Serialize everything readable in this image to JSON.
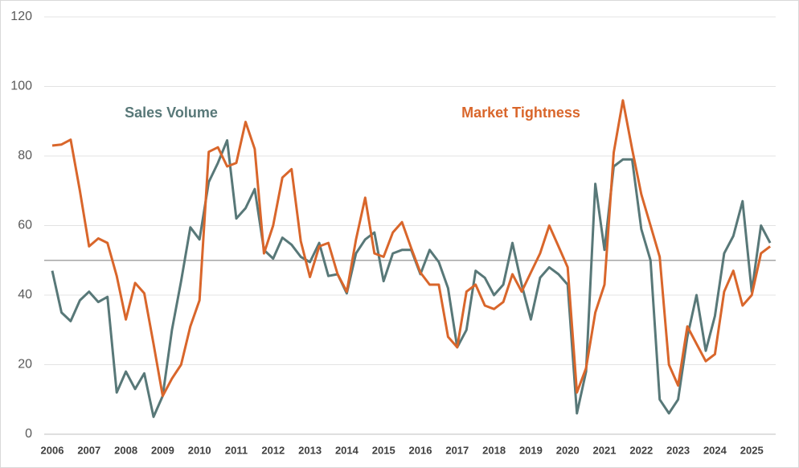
{
  "chart_data": {
    "type": "line",
    "annotations": [
      {
        "text": "Sales Volume",
        "color": "#587878"
      },
      {
        "text": "Market Tightness",
        "color": "#d9662b"
      }
    ],
    "x": [
      2006,
      2006.25,
      2006.5,
      2006.75,
      2007,
      2007.25,
      2007.5,
      2007.75,
      2008,
      2008.25,
      2008.5,
      2008.75,
      2009,
      2009.25,
      2009.5,
      2009.75,
      2010,
      2010.25,
      2010.5,
      2010.75,
      2011,
      2011.25,
      2011.5,
      2011.75,
      2012,
      2012.25,
      2012.5,
      2012.75,
      2013,
      2013.25,
      2013.5,
      2013.75,
      2014,
      2014.25,
      2014.5,
      2014.75,
      2015,
      2015.25,
      2015.5,
      2015.75,
      2016,
      2016.25,
      2016.5,
      2016.75,
      2017,
      2017.25,
      2017.5,
      2017.75,
      2018,
      2018.25,
      2018.5,
      2018.75,
      2019,
      2019.25,
      2019.5,
      2019.75,
      2020,
      2020.25,
      2020.5,
      2020.75,
      2021,
      2021.25,
      2021.5,
      2021.75,
      2022,
      2022.25,
      2022.5,
      2022.75,
      2023,
      2023.25,
      2023.5,
      2023.75,
      2024,
      2024.25,
      2024.5,
      2024.75,
      2025,
      2025.25,
      2025.5
    ],
    "series": [
      {
        "name": "Sales Volume",
        "color": "#587878",
        "values": [
          47,
          35,
          32.5,
          38.5,
          41,
          38,
          39.5,
          12,
          18,
          13,
          17.5,
          5,
          11,
          30,
          44,
          59.5,
          56,
          72.5,
          78,
          84.5,
          62,
          65,
          70.5,
          53,
          50.5,
          56.5,
          54.5,
          51,
          49.5,
          55,
          45.5,
          46,
          40.5,
          52,
          56,
          58,
          44,
          52,
          53,
          53,
          46,
          53,
          49.5,
          42,
          25,
          30,
          47,
          45,
          40,
          43,
          55,
          43,
          33,
          45,
          48,
          46,
          43,
          6,
          18,
          72,
          53,
          77,
          79,
          79,
          59,
          50,
          10,
          6,
          10,
          28,
          40,
          24,
          34,
          52,
          57,
          67,
          41,
          60,
          55
        ]
      },
      {
        "name": "Market Tightness",
        "color": "#d9662b",
        "values": [
          83,
          83.3,
          84.7,
          70,
          54,
          56.3,
          55,
          45.5,
          33,
          43.5,
          40.5,
          26,
          11,
          16,
          20,
          31,
          38.5,
          81.2,
          82.5,
          77,
          78,
          89.8,
          82,
          52,
          60,
          73.8,
          76.2,
          55.5,
          45.2,
          54,
          55,
          46,
          41,
          56,
          68,
          52,
          51,
          58,
          61,
          53.5,
          46.5,
          43,
          43,
          28,
          25,
          41,
          43,
          37,
          36,
          38,
          46,
          41,
          46.5,
          52,
          60,
          54,
          48,
          12,
          19,
          35,
          43,
          81,
          96,
          82,
          69,
          60,
          51,
          20,
          14,
          31,
          26,
          21,
          23,
          41,
          47,
          37,
          40,
          52,
          54
        ]
      }
    ],
    "reference_line": 50,
    "reference_color": "#a6a6a6",
    "xlim": [
      2006,
      2025.65
    ],
    "xticks": [
      2006,
      2007,
      2008,
      2009,
      2010,
      2011,
      2012,
      2013,
      2014,
      2015,
      2016,
      2017,
      2018,
      2019,
      2020,
      2021,
      2022,
      2023,
      2024,
      2025
    ],
    "ylim": [
      0,
      120
    ],
    "yticks": [
      0,
      20,
      40,
      60,
      80,
      100,
      120
    ],
    "grid": true
  }
}
